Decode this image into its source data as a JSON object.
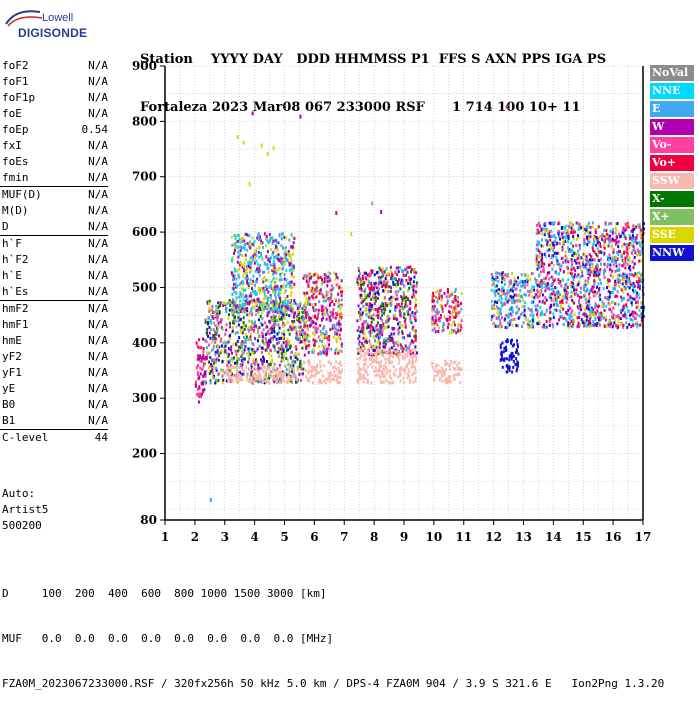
{
  "logo": {
    "line1": "Lowell",
    "line2": "DIGISONDE"
  },
  "header": {
    "line1": "Station    YYYY DAY   DDD HHMMSS P1  FFS S AXN PPS IGA PS",
    "line2": "Fortaleza 2023 Mar08 067 233000 RSF      1 714 100 10+ 11"
  },
  "params": [
    {
      "name": "foF2",
      "value": "N/A"
    },
    {
      "name": "foF1",
      "value": "N/A"
    },
    {
      "name": "foF1p",
      "value": "N/A"
    },
    {
      "name": "foE",
      "value": "N/A"
    },
    {
      "name": "foEp",
      "value": "0.54"
    },
    {
      "name": "fxI",
      "value": "N/A"
    },
    {
      "name": "foEs",
      "value": "N/A"
    },
    {
      "name": "fmin",
      "value": "N/A"
    },
    {
      "sep": true
    },
    {
      "name": "MUF(D)",
      "value": "N/A"
    },
    {
      "name": "M(D)",
      "value": "N/A"
    },
    {
      "name": "D",
      "value": "N/A"
    },
    {
      "sep": true
    },
    {
      "name": "h`F",
      "value": "N/A"
    },
    {
      "name": "h`F2",
      "value": "N/A"
    },
    {
      "name": "h`E",
      "value": "N/A"
    },
    {
      "name": "h`Es",
      "value": "N/A"
    },
    {
      "sep": true
    },
    {
      "name": "hmF2",
      "value": "N/A"
    },
    {
      "name": "hmF1",
      "value": "N/A"
    },
    {
      "name": "hmE",
      "value": "N/A"
    },
    {
      "name": "yF2",
      "value": "N/A"
    },
    {
      "name": "yF1",
      "value": "N/A"
    },
    {
      "name": "yE",
      "value": "N/A"
    },
    {
      "name": "B0",
      "value": "N/A"
    },
    {
      "name": "B1",
      "value": "N/A"
    },
    {
      "sep": true
    },
    {
      "name": "C-level",
      "value": "44"
    }
  ],
  "auto": {
    "line1": "Auto:",
    "line2": "Artist5",
    "line3": "500200"
  },
  "legend": [
    {
      "label": "NoVal",
      "color": "#8c8c8c"
    },
    {
      "label": "NNE",
      "color": "#00d8ff"
    },
    {
      "label": "E",
      "color": "#40a8f0"
    },
    {
      "label": "W",
      "color": "#b000b0"
    },
    {
      "label": "Vo-",
      "color": "#ff40a0"
    },
    {
      "label": "Vo+",
      "color": "#f00040"
    },
    {
      "label": "SSW",
      "color": "#f8b8b0"
    },
    {
      "label": "X-",
      "color": "#007800"
    },
    {
      "label": "X+",
      "color": "#80c060"
    },
    {
      "label": "SSE",
      "color": "#d8d800"
    },
    {
      "label": "NNW",
      "color": "#1010d0"
    }
  ],
  "chart_data": {
    "type": "scatter",
    "title": "",
    "xlabel": "",
    "ylabel": "",
    "xlim": [
      1,
      17
    ],
    "ylim": [
      80,
      900
    ],
    "x_ticks": [
      1,
      2,
      3,
      4,
      5,
      6,
      7,
      8,
      9,
      10,
      11,
      12,
      13,
      14,
      15,
      16,
      17
    ],
    "y_ticks": [
      80,
      200,
      300,
      400,
      500,
      600,
      700,
      800,
      900
    ],
    "grid": true,
    "legend_position": "right",
    "clusters": [
      {
        "x": [
          2.0,
          2.3
        ],
        "y": [
          295,
          410
        ],
        "colors": [
          "#f00040",
          "#b000b0",
          "#ff40a0"
        ]
      },
      {
        "x": [
          2.3,
          5.6
        ],
        "y": [
          330,
          480
        ],
        "colors": [
          "#d8d800",
          "#40a8f0",
          "#ff40a0",
          "#b000b0",
          "#80c060",
          "#007800",
          "#1010d0"
        ]
      },
      {
        "x": [
          3.0,
          5.4
        ],
        "y": [
          330,
          360
        ],
        "colors": [
          "#f8b8b0"
        ]
      },
      {
        "x": [
          3.2,
          5.3
        ],
        "y": [
          460,
          600
        ],
        "colors": [
          "#40a8f0",
          "#00d8ff",
          "#d8d800",
          "#b000b0"
        ]
      },
      {
        "x": [
          5.6,
          6.9
        ],
        "y": [
          380,
          530
        ],
        "colors": [
          "#d8d800",
          "#40a8f0",
          "#ff40a0",
          "#b000b0",
          "#f00040"
        ]
      },
      {
        "x": [
          5.6,
          6.9
        ],
        "y": [
          330,
          370
        ],
        "colors": [
          "#f8b8b0"
        ]
      },
      {
        "x": [
          7.4,
          9.4
        ],
        "y": [
          380,
          540
        ],
        "colors": [
          "#d8d800",
          "#40a8f0",
          "#ff40a0",
          "#b000b0",
          "#f00040",
          "#007800",
          "#1010d0"
        ]
      },
      {
        "x": [
          7.4,
          9.4
        ],
        "y": [
          330,
          390
        ],
        "colors": [
          "#f8b8b0"
        ]
      },
      {
        "x": [
          9.9,
          10.9
        ],
        "y": [
          420,
          500
        ],
        "colors": [
          "#d8d800",
          "#b000b0",
          "#40a8f0",
          "#f00040",
          "#ff40a0"
        ]
      },
      {
        "x": [
          9.9,
          10.9
        ],
        "y": [
          330,
          370
        ],
        "colors": [
          "#f8b8b0"
        ]
      },
      {
        "x": [
          11.9,
          13.4
        ],
        "y": [
          430,
          530
        ],
        "colors": [
          "#00d8ff",
          "#40a8f0",
          "#d8d800",
          "#1010d0",
          "#ff40a0"
        ]
      },
      {
        "x": [
          12.2,
          12.8
        ],
        "y": [
          350,
          410
        ],
        "colors": [
          "#1010d0"
        ]
      },
      {
        "x": [
          13.4,
          17.0
        ],
        "y": [
          430,
          620
        ],
        "colors": [
          "#d8d800",
          "#ff40a0",
          "#b000b0",
          "#40a8f0",
          "#00d8ff",
          "#1010d0",
          "#f00040"
        ]
      }
    ],
    "outliers": [
      {
        "x": 3.4,
        "y": 775,
        "color": "#d8d800"
      },
      {
        "x": 3.6,
        "y": 765,
        "color": "#d8d800"
      },
      {
        "x": 3.9,
        "y": 818,
        "color": "#b000b0"
      },
      {
        "x": 4.2,
        "y": 760,
        "color": "#d8d800"
      },
      {
        "x": 4.4,
        "y": 745,
        "color": "#d8d800"
      },
      {
        "x": 4.6,
        "y": 755,
        "color": "#d8d800"
      },
      {
        "x": 3.8,
        "y": 690,
        "color": "#d8d800"
      },
      {
        "x": 5.5,
        "y": 812,
        "color": "#b000b0"
      },
      {
        "x": 4.8,
        "y": 598,
        "color": "#40a8f0"
      },
      {
        "x": 7.2,
        "y": 600,
        "color": "#d8d800"
      },
      {
        "x": 7.9,
        "y": 655,
        "color": "#80c060"
      },
      {
        "x": 8.2,
        "y": 640,
        "color": "#b000b0"
      },
      {
        "x": 6.7,
        "y": 638,
        "color": "#f00040"
      },
      {
        "x": 12.4,
        "y": 830,
        "color": "#ff40a0"
      },
      {
        "x": 2.5,
        "y": 120,
        "color": "#40a8f0"
      }
    ]
  },
  "footer": {
    "line1": "D     100  200  400  600  800 1000 1500 3000 [km]",
    "line2": "MUF   0.0  0.0  0.0  0.0  0.0  0.0  0.0  0.0 [MHz]",
    "line3": "FZA0M_2023067233000.RSF / 320fx256h 50 kHz 5.0 km / DPS-4 FZA0M 904 / 3.9 S 321.6 E   Ion2Png 1.3.20"
  }
}
